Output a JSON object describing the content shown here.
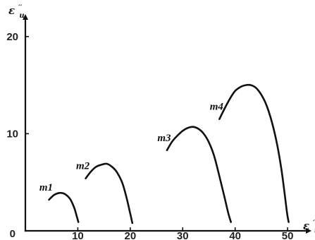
{
  "chart_data": {
    "type": "line",
    "title": "",
    "xlabel": {
      "main": "ε",
      "sup": "′",
      "sub": "u"
    },
    "ylabel": {
      "main": "ε",
      "sup": "′′",
      "sub": "u"
    },
    "xlim": [
      0,
      52
    ],
    "ylim": [
      0,
      21
    ],
    "xticks": [
      {
        "value": 10,
        "label": "10"
      },
      {
        "value": 20,
        "label": "20"
      },
      {
        "value": 30,
        "label": "30"
      },
      {
        "value": 40,
        "label": "40"
      },
      {
        "value": 50,
        "label": "50"
      }
    ],
    "yticks": [
      {
        "value": 0,
        "label": "0"
      },
      {
        "value": 10,
        "label": "10"
      },
      {
        "value": 20,
        "label": "20"
      }
    ],
    "grid": false,
    "series": [
      {
        "name": "m1",
        "points": [
          [
            4.5,
            3.2
          ],
          [
            5.5,
            3.7
          ],
          [
            6.5,
            3.9
          ],
          [
            7.5,
            3.8
          ],
          [
            8.5,
            3.3
          ],
          [
            9.3,
            2.4
          ],
          [
            9.8,
            1.5
          ],
          [
            10.1,
            0.9
          ]
        ]
      },
      {
        "name": "m2",
        "points": [
          [
            11.5,
            5.4
          ],
          [
            12.5,
            6.1
          ],
          [
            13.5,
            6.6
          ],
          [
            14.5,
            6.8
          ],
          [
            15.5,
            6.9
          ],
          [
            16.5,
            6.6
          ],
          [
            17.5,
            6.0
          ],
          [
            18.5,
            4.9
          ],
          [
            19.3,
            3.4
          ],
          [
            19.9,
            2.0
          ],
          [
            20.4,
            0.8
          ]
        ]
      },
      {
        "name": "m3",
        "points": [
          [
            27.0,
            8.3
          ],
          [
            28.0,
            9.2
          ],
          [
            29.0,
            9.8
          ],
          [
            30.0,
            10.3
          ],
          [
            31.0,
            10.6
          ],
          [
            32.0,
            10.7
          ],
          [
            33.0,
            10.5
          ],
          [
            34.0,
            10.0
          ],
          [
            35.0,
            9.1
          ],
          [
            36.0,
            7.7
          ],
          [
            37.0,
            5.6
          ],
          [
            38.0,
            3.4
          ],
          [
            38.7,
            1.8
          ],
          [
            39.2,
            0.9
          ]
        ]
      },
      {
        "name": "m4",
        "points": [
          [
            37.0,
            11.5
          ],
          [
            38.0,
            12.6
          ],
          [
            39.0,
            13.6
          ],
          [
            40.0,
            14.4
          ],
          [
            41.0,
            14.8
          ],
          [
            42.0,
            15.0
          ],
          [
            43.0,
            15.0
          ],
          [
            44.0,
            14.7
          ],
          [
            45.0,
            14.0
          ],
          [
            46.0,
            12.9
          ],
          [
            47.0,
            11.2
          ],
          [
            48.0,
            8.9
          ],
          [
            48.8,
            6.4
          ],
          [
            49.4,
            4.0
          ],
          [
            49.9,
            1.8
          ],
          [
            50.2,
            0.9
          ]
        ]
      }
    ]
  }
}
